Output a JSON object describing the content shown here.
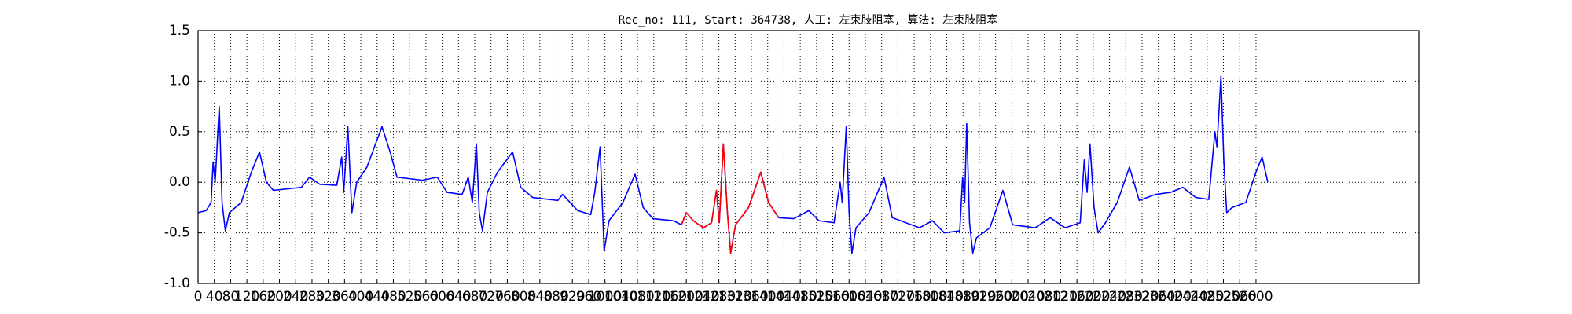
{
  "chart_data": {
    "type": "line",
    "title": "Rec_no: 111, Start: 364738, 人工: 左束肢阻塞, 算法: 左束肢阻塞",
    "xlim": [
      0,
      3000
    ],
    "ylim": [
      -1.0,
      1.5
    ],
    "xticks": [
      0,
      40,
      80,
      120,
      160,
      200,
      240,
      280,
      320,
      360,
      400,
      440,
      480,
      520,
      560,
      600,
      640,
      680,
      720,
      760,
      800,
      840,
      880,
      920,
      960,
      1000,
      1040,
      1080,
      1120,
      1160,
      1200,
      1240,
      1280,
      1320,
      1360,
      1400,
      1440,
      1480,
      1520,
      1560,
      1600,
      1640,
      1680,
      1720,
      1760,
      1800,
      1840,
      1880,
      1920,
      1960,
      2000,
      2040,
      2080,
      2120,
      2160,
      2200,
      2240,
      2280,
      2320,
      2360,
      2400,
      2440,
      2480,
      2520,
      2560,
      2600
    ],
    "yticks": [
      {
        "value": -1.0,
        "label": "-1.0"
      },
      -0.5,
      {
        "value": 0.0,
        "label": "0.0"
      },
      0.5,
      {
        "value": 1.0,
        "label": "1.0"
      },
      1.5
    ],
    "grid": true,
    "series": [
      {
        "color": "#0000ff",
        "x": [
          0,
          20,
          32,
          37,
          42,
          52,
          59,
          67,
          77,
          106,
          131,
          151,
          168,
          185,
          254,
          274,
          299,
          341,
          353,
          358,
          368,
          378,
          390,
          415,
          452,
          472,
          489,
          551,
          588,
          612,
          649,
          664,
          674,
          684,
          691,
          699,
          711,
          736,
          773,
          793,
          822,
          884,
          896,
          933,
          965,
          975,
          988,
          998,
          1010,
          1044,
          1074,
          1094,
          1118,
          1168,
          1188,
          1200,
          1217,
          1242,
          1262,
          1274,
          1281,
          1291,
          1301,
          1309,
          1321,
          1353,
          1383,
          1402,
          1427,
          1464,
          1501,
          1526,
          1563,
          1578,
          1583,
          1593,
          1600,
          1607,
          1617,
          1649,
          1686,
          1706,
          1773,
          1805,
          1834,
          1872,
          1879,
          1884,
          1889,
          1896,
          1904,
          1913,
          1946,
          1978,
          2002,
          2057,
          2094,
          2131,
          2168,
          2178,
          2185,
          2192,
          2202,
          2212,
          2230,
          2259,
          2289,
          2313,
          2353,
          2390,
          2420,
          2452,
          2484,
          2499,
          2504,
          2514,
          2521,
          2528,
          2541,
          2575,
          2600,
          2615,
          2629
        ],
        "values": [
          -0.3,
          -0.28,
          -0.2,
          0.2,
          0.0,
          0.75,
          -0.2,
          -0.48,
          -0.3,
          -0.2,
          0.1,
          0.3,
          0.0,
          -0.08,
          -0.05,
          0.05,
          -0.02,
          -0.03,
          0.25,
          -0.1,
          0.55,
          -0.3,
          0.0,
          0.15,
          0.55,
          0.3,
          0.05,
          0.02,
          0.05,
          -0.1,
          -0.12,
          0.05,
          -0.2,
          0.38,
          -0.3,
          -0.48,
          -0.1,
          0.1,
          0.3,
          -0.05,
          -0.15,
          -0.18,
          -0.12,
          -0.28,
          -0.32,
          -0.1,
          0.35,
          -0.68,
          -0.38,
          -0.2,
          0.08,
          -0.25,
          -0.36,
          -0.38,
          -0.42,
          -0.3,
          -0.38,
          -0.45,
          -0.4,
          -0.08,
          -0.4,
          0.38,
          -0.3,
          -0.7,
          -0.42,
          -0.25,
          0.1,
          -0.2,
          -0.35,
          -0.36,
          -0.28,
          -0.38,
          -0.4,
          0.0,
          -0.2,
          0.55,
          -0.3,
          -0.7,
          -0.45,
          -0.3,
          0.05,
          -0.35,
          -0.45,
          -0.38,
          -0.5,
          -0.48,
          0.05,
          -0.2,
          0.58,
          -0.4,
          -0.7,
          -0.55,
          -0.45,
          -0.08,
          -0.42,
          -0.45,
          -0.35,
          -0.45,
          -0.4,
          0.22,
          -0.1,
          0.38,
          -0.25,
          -0.5,
          -0.4,
          -0.2,
          0.15,
          -0.18,
          -0.12,
          -0.1,
          -0.05,
          -0.15,
          -0.17,
          0.5,
          0.35,
          1.05,
          0.2,
          -0.3,
          -0.25,
          -0.2,
          0.1,
          0.25,
          0.0
        ]
      },
      {
        "color": "#ff0000",
        "x": [
          1188,
          1200,
          1217,
          1242,
          1262,
          1274,
          1281,
          1291,
          1301,
          1309,
          1321,
          1353,
          1383,
          1402,
          1427
        ],
        "values": [
          -0.42,
          -0.3,
          -0.38,
          -0.45,
          -0.4,
          -0.08,
          -0.4,
          0.38,
          -0.3,
          -0.7,
          -0.42,
          -0.25,
          0.1,
          -0.2,
          -0.35
        ]
      }
    ]
  }
}
